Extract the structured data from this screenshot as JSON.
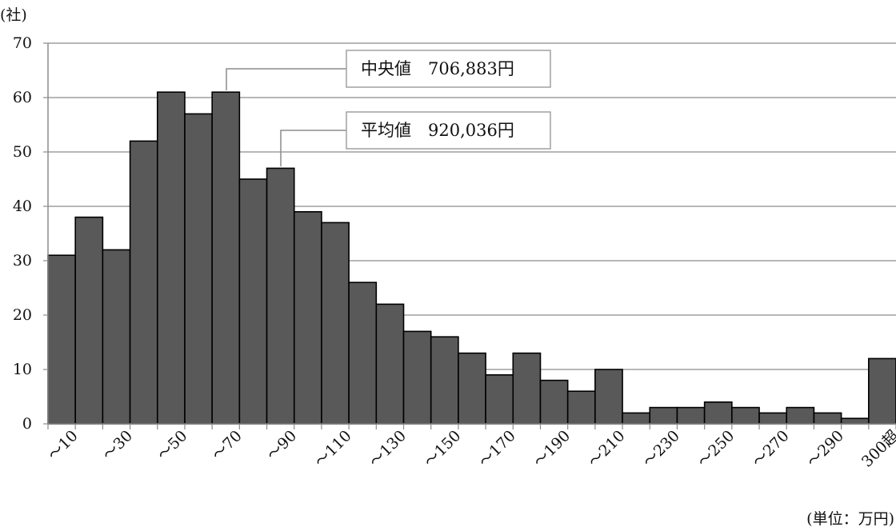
{
  "chart_data": {
    "type": "bar",
    "y_unit_label": "(社)",
    "x_unit_label": "(単位：万円)",
    "ylim": [
      0,
      70
    ],
    "y_ticks": [
      0,
      10,
      20,
      30,
      40,
      50,
      60,
      70
    ],
    "grid": true,
    "bar_color": "#595959",
    "values": [
      31,
      38,
      32,
      52,
      61,
      57,
      61,
      45,
      47,
      39,
      37,
      26,
      22,
      17,
      16,
      13,
      9,
      13,
      8,
      6,
      10,
      2,
      3,
      3,
      4,
      3,
      2,
      3,
      2,
      1,
      12
    ],
    "x_tick_labels": [
      "～10",
      "～30",
      "～50",
      "～70",
      "～90",
      "～110",
      "～130",
      "～150",
      "～170",
      "～190",
      "～210",
      "～230",
      "～250",
      "～270",
      "～290",
      "300超"
    ],
    "annotations": [
      {
        "name": "median",
        "text": "中央値　706,883円"
      },
      {
        "name": "mean",
        "text": "平均値　920,036円"
      }
    ]
  }
}
